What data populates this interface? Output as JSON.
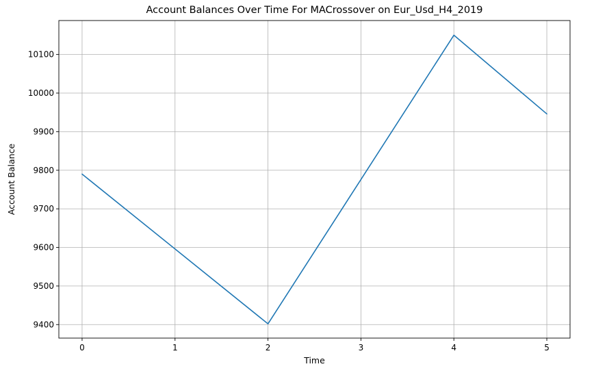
{
  "chart_data": {
    "type": "line",
    "title": "Account Balances Over Time For MACrossover on Eur_Usd_H4_2019",
    "xlabel": "Time",
    "ylabel": "Account Balance",
    "x": [
      0,
      1,
      2,
      3,
      4,
      5
    ],
    "series": [
      {
        "values": [
          9790,
          9596,
          9402,
          9776,
          10150,
          9946
        ]
      }
    ],
    "xticks": [
      0,
      1,
      2,
      3,
      4,
      5
    ],
    "yticks": [
      9400,
      9500,
      9600,
      9700,
      9800,
      9900,
      10000,
      10100
    ],
    "xlim": [
      -0.25,
      5.25
    ],
    "ylim": [
      9365,
      10188
    ],
    "grid": true,
    "line_color": "#1f77b4"
  }
}
